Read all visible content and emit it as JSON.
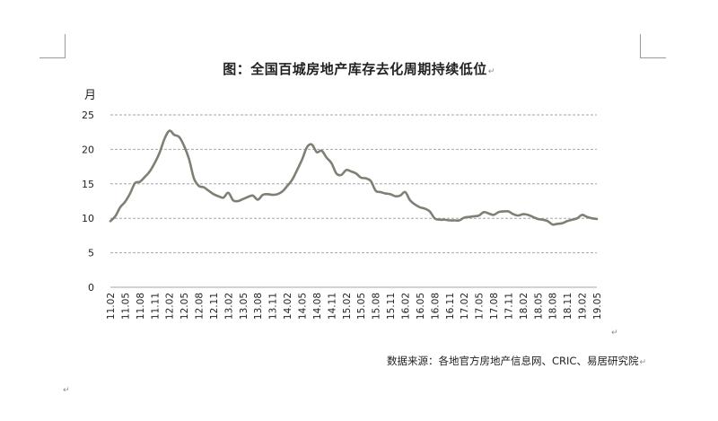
{
  "title": "图：全国百城房地产库存去化周期持续低位",
  "source": "数据来源：各地官方房地产信息网、CRIC、易居研究院",
  "paragraph_mark": "↵",
  "line_color": "#7f7f74",
  "grid_color": "#a6a6a6",
  "chart_data": {
    "type": "line",
    "title": "图：全国百城房地产库存去化周期持续低位",
    "ylabel": "月",
    "xlabel": "",
    "ylim": [
      0,
      25
    ],
    "yticks": [
      0,
      5,
      10,
      15,
      20,
      25
    ],
    "grid": true,
    "x_tick_labels": [
      "11.02",
      "11.05",
      "11.08",
      "11.11",
      "12.02",
      "12.05",
      "12.08",
      "12.11",
      "13.02",
      "13.05",
      "13.08",
      "13.11",
      "14.02",
      "14.05",
      "14.08",
      "14.11",
      "15.02",
      "15.05",
      "15.08",
      "15.11",
      "16.02",
      "16.05",
      "16.08",
      "16.11",
      "17.02",
      "17.05",
      "17.08",
      "17.11",
      "18.02",
      "18.05",
      "18.08",
      "18.11",
      "19.02",
      "19.05"
    ],
    "x": [
      "11.02",
      "11.03",
      "11.04",
      "11.05",
      "11.06",
      "11.07",
      "11.08",
      "11.09",
      "11.10",
      "11.11",
      "11.12",
      "12.01",
      "12.02",
      "12.03",
      "12.04",
      "12.05",
      "12.06",
      "12.07",
      "12.08",
      "12.09",
      "12.10",
      "12.11",
      "12.12",
      "13.01",
      "13.02",
      "13.03",
      "13.04",
      "13.05",
      "13.06",
      "13.07",
      "13.08",
      "13.09",
      "13.10",
      "13.11",
      "13.12",
      "14.01",
      "14.02",
      "14.03",
      "14.04",
      "14.05",
      "14.06",
      "14.07",
      "14.08",
      "14.09",
      "14.10",
      "14.11",
      "14.12",
      "15.01",
      "15.02",
      "15.03",
      "15.04",
      "15.05",
      "15.06",
      "15.07",
      "15.08",
      "15.09",
      "15.10",
      "15.11",
      "15.12",
      "16.01",
      "16.02",
      "16.03",
      "16.04",
      "16.05",
      "16.06",
      "16.07",
      "16.08",
      "16.09",
      "16.10",
      "16.11",
      "16.12",
      "17.01",
      "17.02",
      "17.03",
      "17.04",
      "17.05",
      "17.06",
      "17.07",
      "17.08",
      "17.09",
      "17.10",
      "17.11",
      "17.12",
      "18.01",
      "18.02",
      "18.03",
      "18.04",
      "18.05",
      "18.06",
      "18.07",
      "18.08",
      "18.09",
      "18.10",
      "18.11",
      "18.12",
      "19.01",
      "19.02",
      "19.03",
      "19.04",
      "19.05"
    ],
    "series": [
      {
        "values": [
          9.6,
          10.3,
          11.6,
          12.4,
          13.6,
          15.1,
          15.3,
          16.0,
          16.8,
          18.0,
          19.5,
          21.5,
          22.7,
          22.1,
          21.8,
          20.5,
          18.6,
          15.8,
          14.7,
          14.5,
          14.0,
          13.5,
          13.2,
          13.0,
          13.7,
          12.6,
          12.5,
          12.8,
          13.1,
          13.3,
          12.7,
          13.4,
          13.5,
          13.4,
          13.5,
          13.9,
          14.7,
          15.6,
          17.0,
          18.5,
          20.3,
          20.7,
          19.6,
          19.8,
          18.8,
          18.0,
          16.5,
          16.3,
          17.0,
          16.8,
          16.5,
          15.9,
          15.8,
          15.4,
          14.0,
          13.8,
          13.6,
          13.5,
          13.2,
          13.3,
          13.8,
          12.6,
          12.0,
          11.6,
          11.4,
          11.0,
          10.0,
          9.8,
          9.8,
          9.7,
          9.7,
          9.7,
          10.1,
          10.2,
          10.3,
          10.4,
          10.9,
          10.7,
          10.5,
          10.9,
          11.0,
          11.0,
          10.6,
          10.4,
          10.6,
          10.5,
          10.2,
          9.9,
          9.8,
          9.6,
          9.1,
          9.2,
          9.3,
          9.6,
          9.8,
          10.0,
          10.5,
          10.2,
          10.0,
          9.9
        ]
      }
    ]
  }
}
